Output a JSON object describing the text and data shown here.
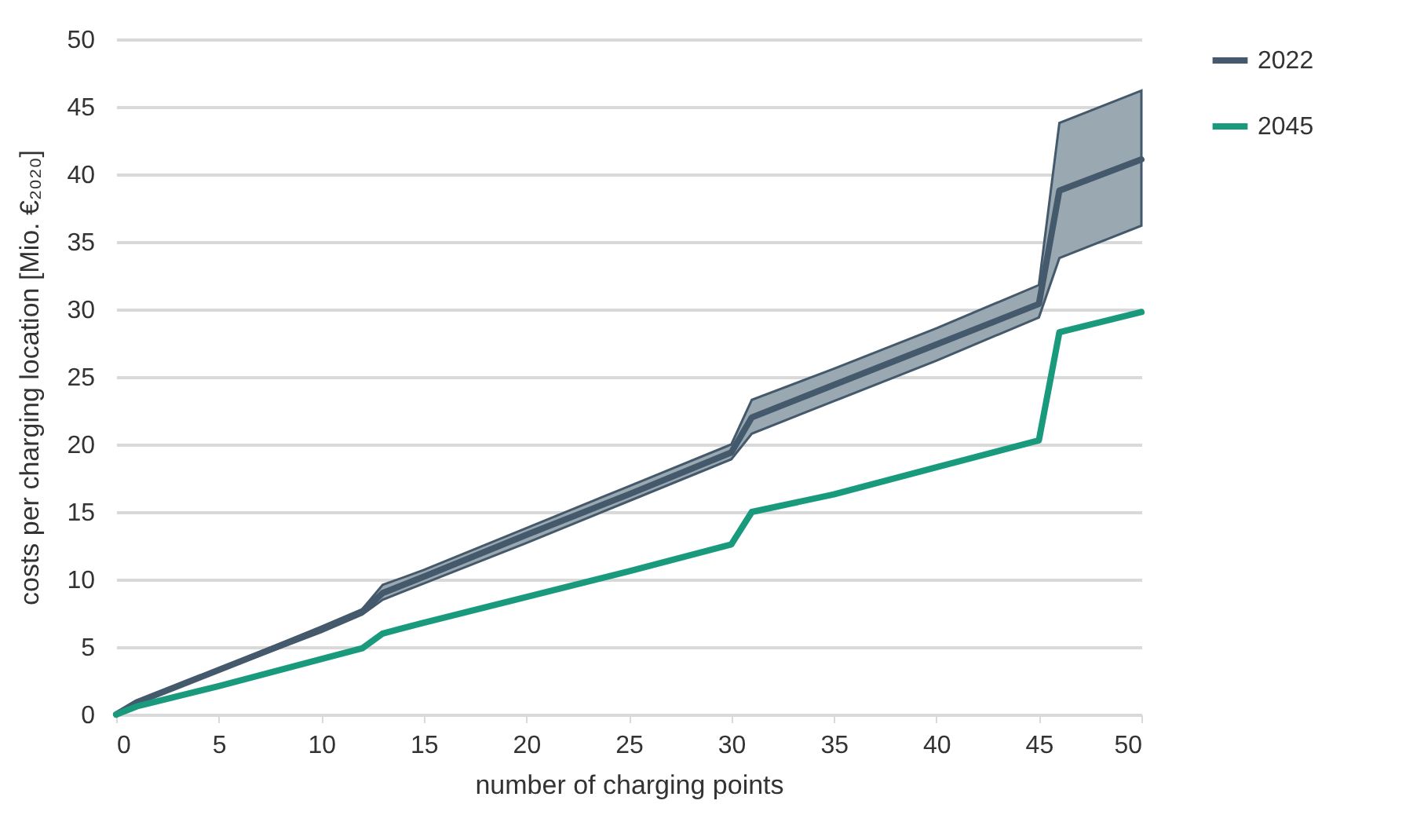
{
  "chart_data": {
    "type": "line",
    "xlabel": "number of charging points",
    "ylabel": "costs per charging location [Mio. €₂₀₂₀]",
    "xlim": [
      0,
      50
    ],
    "ylim": [
      0,
      50
    ],
    "xticks": [
      0,
      5,
      10,
      15,
      20,
      25,
      30,
      35,
      40,
      45,
      50
    ],
    "yticks": [
      0,
      5,
      10,
      15,
      20,
      25,
      30,
      35,
      40,
      45,
      50
    ],
    "grid": "y",
    "legend": "right",
    "marker": "none",
    "line_style": "solid",
    "x": [
      0,
      1,
      5,
      10,
      12,
      13,
      15,
      20,
      25,
      30,
      31,
      35,
      40,
      45,
      46,
      50
    ],
    "series": [
      {
        "name": "2022",
        "color": "#44596b",
        "values": [
          0,
          0.9,
          3.3,
          6.3,
          7.6,
          9.0,
          10.2,
          13.3,
          16.3,
          19.4,
          22.0,
          24.4,
          27.4,
          30.4,
          38.8,
          41.1
        ],
        "lower": [
          0,
          0.8,
          3.2,
          6.1,
          7.4,
          8.5,
          9.7,
          12.7,
          15.8,
          18.9,
          20.8,
          23.2,
          26.2,
          29.4,
          33.8,
          36.2
        ],
        "upper": [
          0,
          1.0,
          3.4,
          6.5,
          7.8,
          9.6,
          10.7,
          13.8,
          16.9,
          20.0,
          23.3,
          25.6,
          28.6,
          31.8,
          43.8,
          46.2
        ]
      },
      {
        "name": "2045",
        "color": "#1a9a7c",
        "values": [
          0,
          0.6,
          2.1,
          4.1,
          4.9,
          6.0,
          6.8,
          8.7,
          10.6,
          12.6,
          15.0,
          16.3,
          18.3,
          20.3,
          28.3,
          29.8
        ]
      }
    ]
  }
}
